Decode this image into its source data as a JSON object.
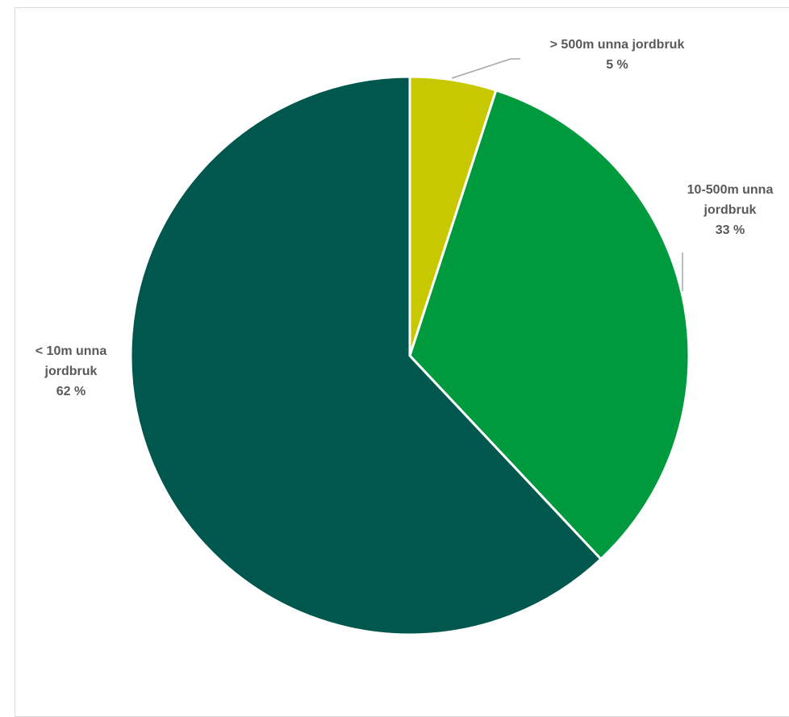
{
  "chart_data": {
    "type": "pie",
    "title": "",
    "slices": [
      {
        "label_lines": [
          "> 500m unna jordbruk"
        ],
        "value_label": "5 %",
        "value": 5,
        "color": "#c8c800"
      },
      {
        "label_lines": [
          "10-500m unna",
          "jordbruk"
        ],
        "value_label": "33 %",
        "value": 33,
        "color": "#009a3e"
      },
      {
        "label_lines": [
          "< 10m unna",
          "jordbruk"
        ],
        "value_label": "62 %",
        "value": 62,
        "color": "#00574d"
      }
    ],
    "start_angle_deg": 0,
    "direction": "clockwise",
    "slice_border_color": "#ffffff",
    "leader_line_color": "#a6a6a6"
  }
}
